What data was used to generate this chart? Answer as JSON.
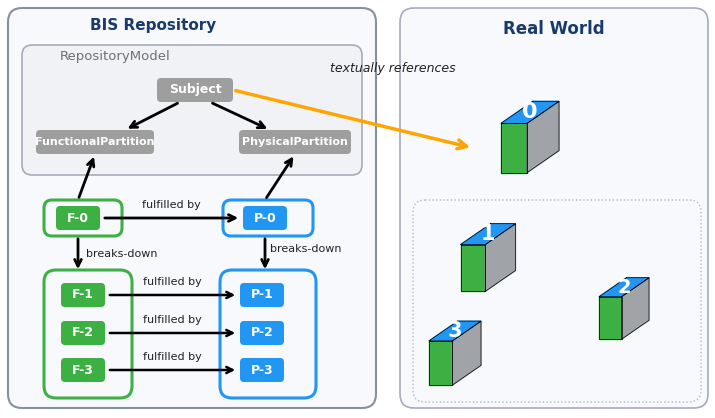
{
  "title_bis": "BIS Repository",
  "title_repo": "RepositoryModel",
  "title_real": "Real World",
  "bis_border": "#a0a0b0",
  "repo_border": "#a0a0b0",
  "real_border": "#b0b0c0",
  "inner_border": "#c0c0d0",
  "green": "#3cb043",
  "blue": "#2196f3",
  "gray_node": "#9e9e9e",
  "orange": "#FFA500",
  "black": "#000000",
  "white": "#ffffff",
  "bis_title_color": "#1a3a6b",
  "real_title_color": "#1a3a6b",
  "repo_label_color": "#707070",
  "label_color": "#222222"
}
